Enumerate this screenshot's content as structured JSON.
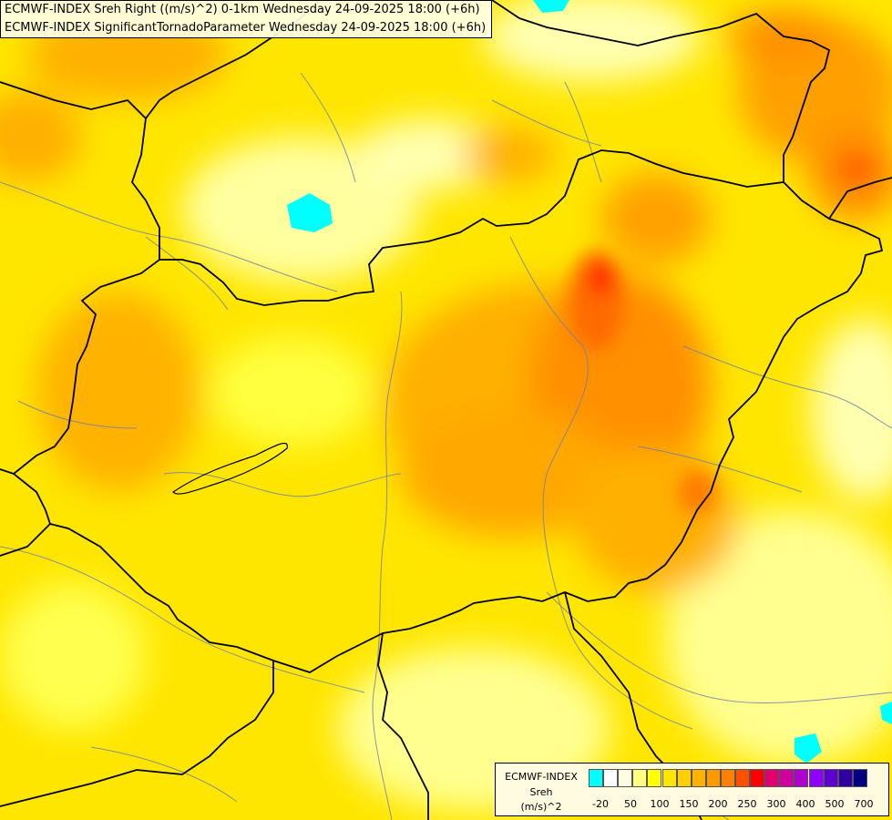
{
  "title": {
    "line1": "ECMWF-INDEX Sreh Right ((m/s)^2) 0-1km Wednesday 24-09-2025 18:00 (+6h)",
    "line2": "ECMWF-INDEX SignificantTornadoParameter Wednesday 24-09-2025 18:00 (+6h)"
  },
  "legend": {
    "line1": "ECMWF-INDEX",
    "line2": "Sreh",
    "line3": "(m/s)^2",
    "colors": [
      "#00ffff",
      "#ffffff",
      "#ffffe0",
      "#ffff80",
      "#ffff00",
      "#ffe600",
      "#ffd000",
      "#ffb300",
      "#ff9900",
      "#ff7f00",
      "#ff5000",
      "#ff0000",
      "#e0006f",
      "#d000a0",
      "#b000d0",
      "#9000ff",
      "#6000d0",
      "#3000a0",
      "#000080"
    ],
    "ticks": [
      "-20",
      "50",
      "100",
      "150",
      "200",
      "250",
      "300",
      "400",
      "500",
      "700"
    ]
  }
}
